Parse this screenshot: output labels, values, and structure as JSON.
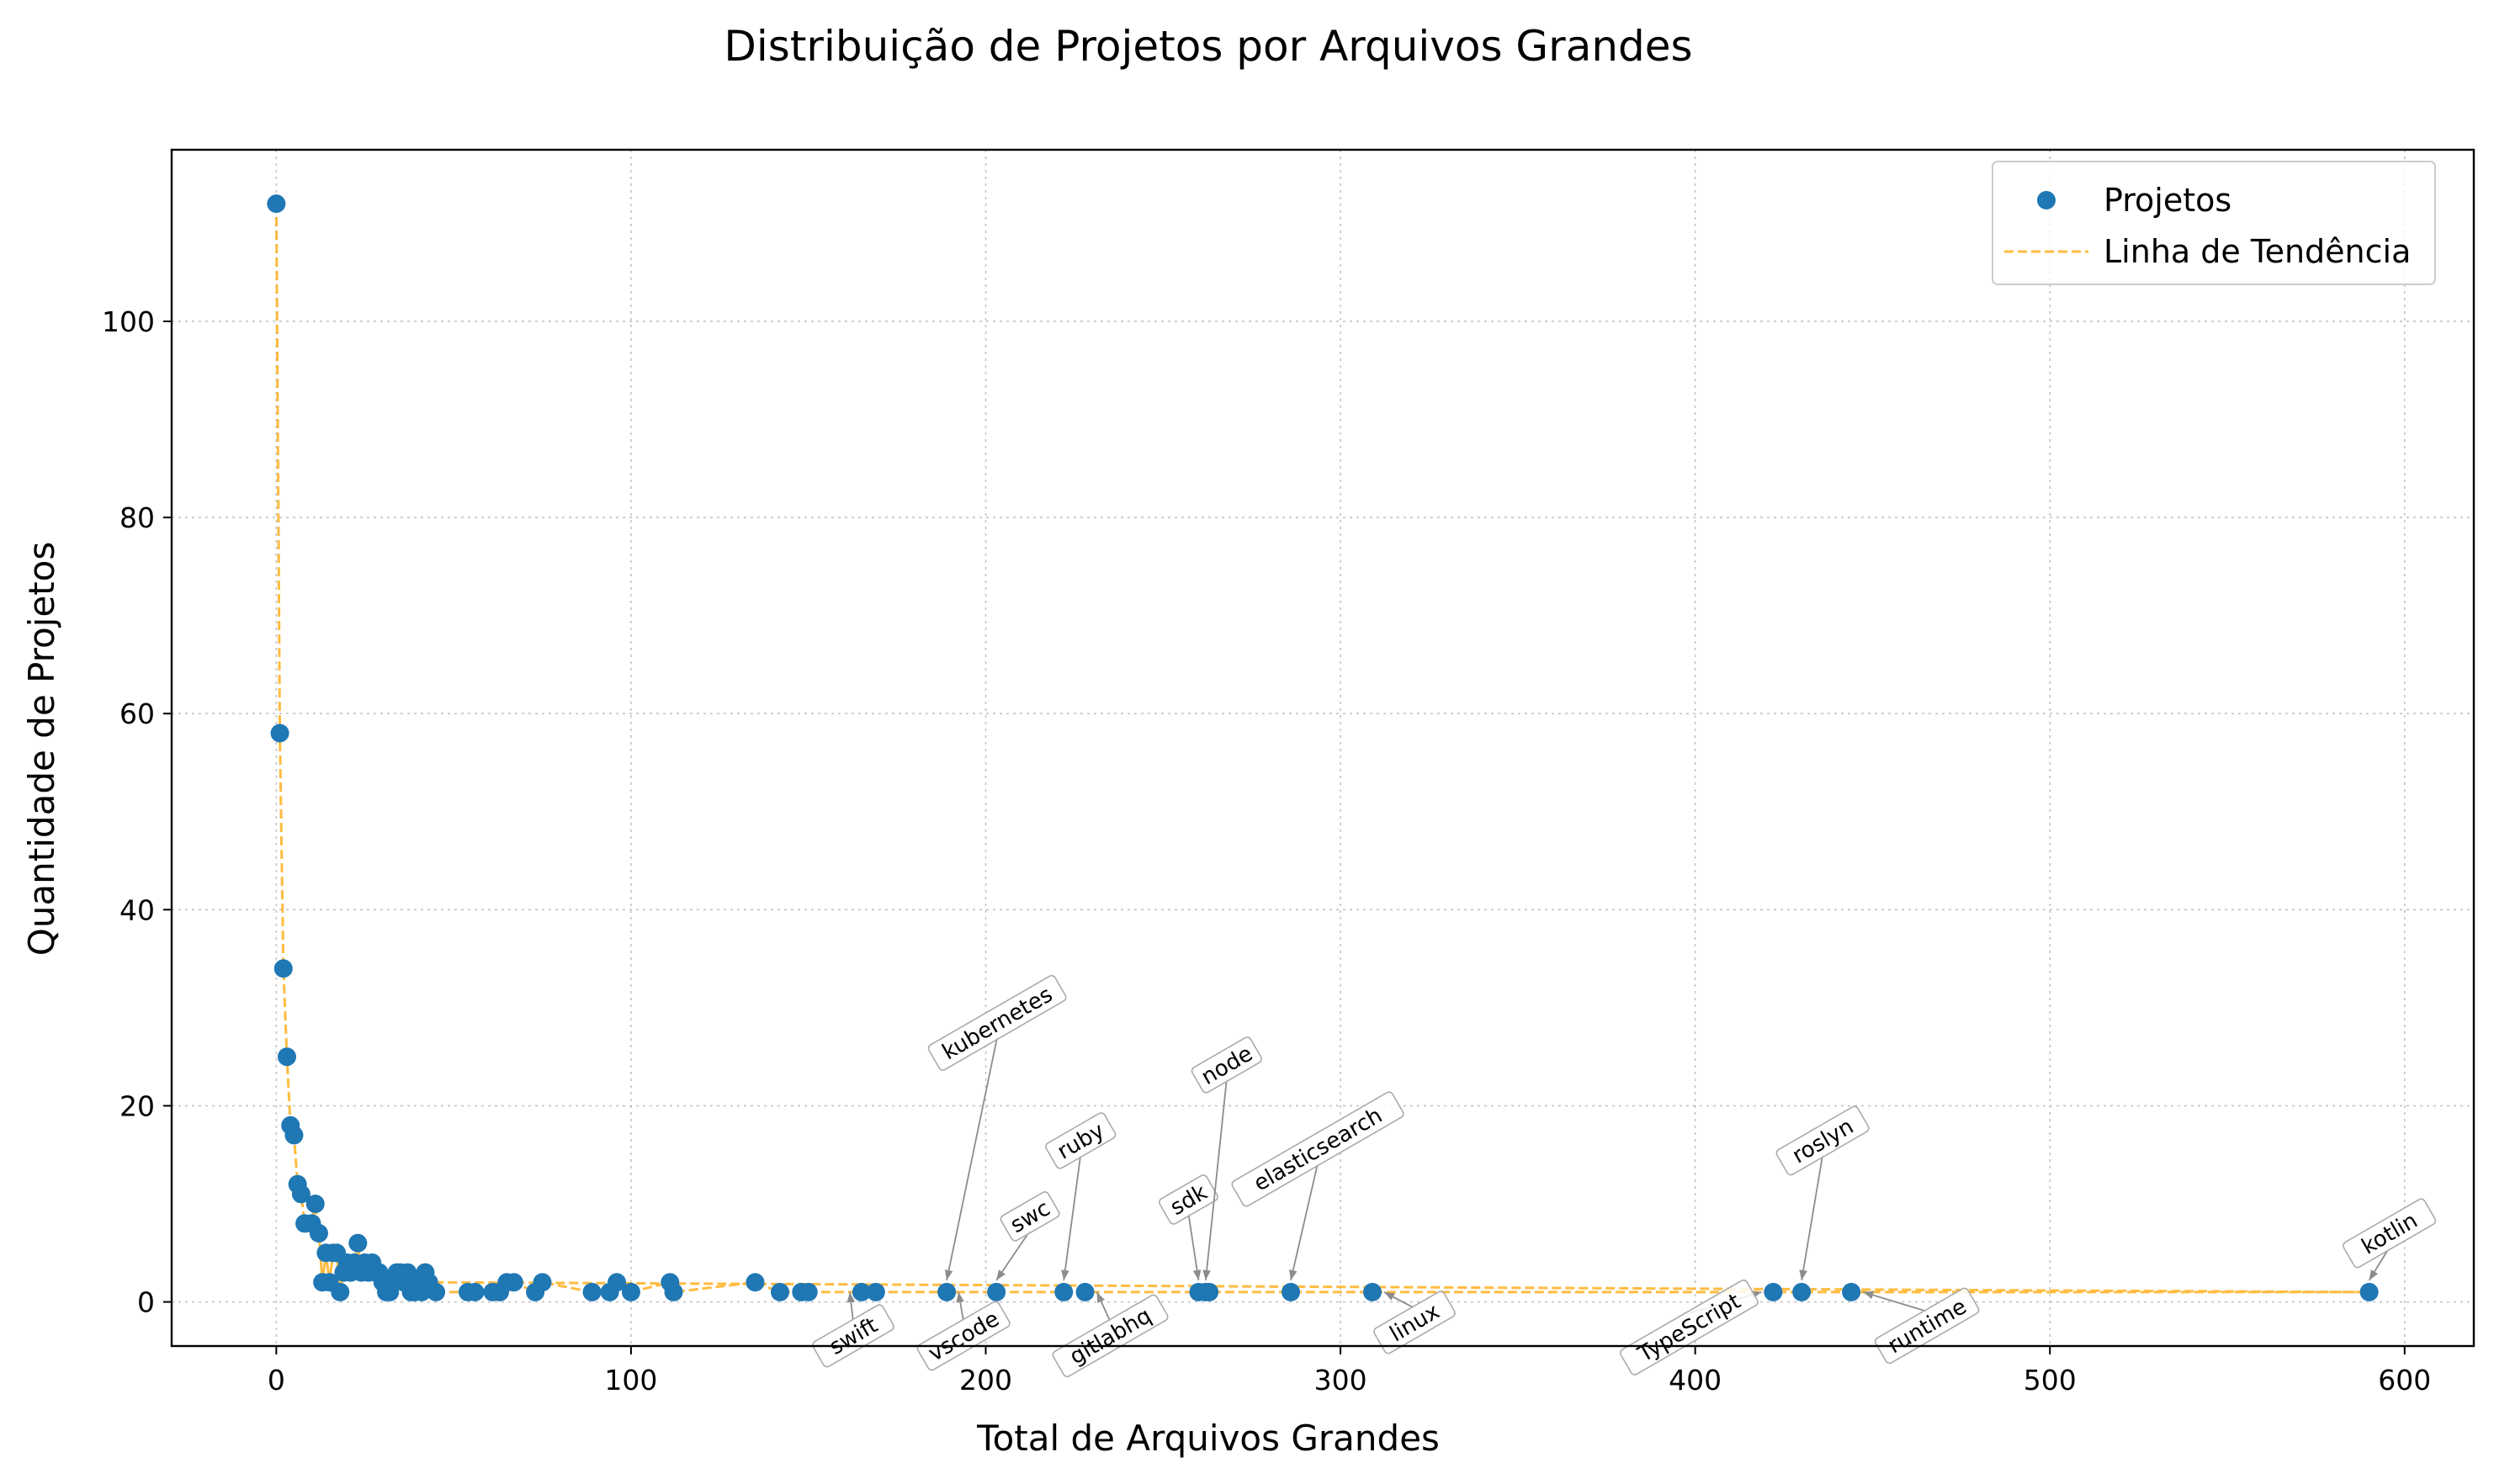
{
  "chart_data": {
    "type": "scatter",
    "title": "Distribuição de Projetos por Arquivos Grandes",
    "xlabel": "Total de Arquivos Grandes",
    "ylabel": "Quantidade de Projetos",
    "xlim": [
      -29.5,
      619.5
    ],
    "ylim": [
      -4.5,
      117.5
    ],
    "xticks": [
      0,
      100,
      200,
      300,
      400,
      500,
      600
    ],
    "yticks": [
      0,
      20,
      40,
      60,
      80,
      100
    ],
    "grid": true,
    "legend_position": "top-right",
    "colors": {
      "points": "#1f77b4",
      "trend": "#ffa500"
    },
    "series": [
      {
        "name": "Projetos",
        "kind": "scatter",
        "points": [
          [
            0,
            112
          ],
          [
            1,
            58
          ],
          [
            2,
            34
          ],
          [
            3,
            25
          ],
          [
            4,
            18
          ],
          [
            5,
            17
          ],
          [
            6,
            12
          ],
          [
            7,
            11
          ],
          [
            8,
            8
          ],
          [
            10,
            8
          ],
          [
            11,
            10
          ],
          [
            12,
            7
          ],
          [
            13,
            2
          ],
          [
            14,
            5
          ],
          [
            15,
            2
          ],
          [
            16,
            5
          ],
          [
            17,
            5
          ],
          [
            18,
            1
          ],
          [
            19,
            3
          ],
          [
            20,
            4
          ],
          [
            21,
            3
          ],
          [
            22,
            4
          ],
          [
            23,
            6
          ],
          [
            24,
            3
          ],
          [
            25,
            4
          ],
          [
            26,
            3
          ],
          [
            27,
            4
          ],
          [
            28,
            3
          ],
          [
            29,
            3
          ],
          [
            30,
            2
          ],
          [
            31,
            1
          ],
          [
            32,
            1
          ],
          [
            33,
            2
          ],
          [
            34,
            3
          ],
          [
            35,
            3
          ],
          [
            36,
            2
          ],
          [
            37,
            3
          ],
          [
            38,
            1
          ],
          [
            39,
            1
          ],
          [
            40,
            2
          ],
          [
            41,
            1
          ],
          [
            42,
            3
          ],
          [
            43,
            2
          ],
          [
            45,
            1
          ],
          [
            54,
            1
          ],
          [
            56,
            1
          ],
          [
            61,
            1
          ],
          [
            63,
            1
          ],
          [
            65,
            2
          ],
          [
            67,
            2
          ],
          [
            73,
            1
          ],
          [
            75,
            2
          ],
          [
            89,
            1
          ],
          [
            94,
            1
          ],
          [
            96,
            2
          ],
          [
            100,
            1
          ],
          [
            111,
            2
          ],
          [
            112,
            1
          ],
          [
            135,
            2
          ],
          [
            142,
            1
          ],
          [
            148,
            1
          ],
          [
            150,
            1
          ],
          [
            165,
            1
          ],
          [
            169,
            1
          ],
          [
            189,
            1
          ],
          [
            203,
            1
          ],
          [
            222,
            1
          ],
          [
            228,
            1
          ],
          [
            260,
            1
          ],
          [
            262,
            1
          ],
          [
            263,
            1
          ],
          [
            286,
            1
          ],
          [
            309,
            1
          ],
          [
            422,
            1
          ],
          [
            430,
            1
          ],
          [
            444,
            1
          ],
          [
            590,
            1
          ]
        ]
      },
      {
        "name": "Linha de Tendência",
        "kind": "line",
        "style": "dashed",
        "order": [
          0,
          1,
          2,
          3,
          4,
          5,
          6,
          7,
          8,
          10,
          11,
          12,
          13,
          14,
          15,
          16,
          17,
          18,
          19,
          20,
          21,
          22,
          23,
          24,
          25,
          26,
          27,
          28,
          29,
          30,
          31,
          32,
          33,
          34,
          35,
          36,
          37,
          38,
          39,
          40,
          41,
          42,
          43,
          45,
          54,
          56,
          61,
          63,
          65,
          67,
          73,
          75,
          89,
          94,
          96,
          100,
          111,
          112,
          135,
          142,
          148,
          150,
          165,
          169,
          189,
          203,
          222,
          228,
          260,
          262,
          263,
          286,
          309,
          422,
          430,
          444,
          590,
          43,
          42,
          41,
          40,
          39,
          38,
          37,
          36,
          35,
          34,
          33,
          32,
          31,
          30,
          29,
          28,
          27,
          26,
          25,
          24,
          23,
          22,
          21,
          20,
          19,
          18,
          17,
          16,
          15,
          14,
          13,
          12
        ]
      }
    ],
    "annotations": [
      {
        "text": "kubernetes",
        "x": 189,
        "y": 1,
        "direction": "up"
      },
      {
        "text": "swc",
        "x": 203,
        "y": 1,
        "direction": "up"
      },
      {
        "text": "ruby",
        "x": 222,
        "y": 1,
        "direction": "up"
      },
      {
        "text": "sdk",
        "x": 260,
        "y": 1,
        "direction": "up"
      },
      {
        "text": "node",
        "x": 262,
        "y": 1,
        "direction": "up"
      },
      {
        "text": "elasticsearch",
        "x": 286,
        "y": 1,
        "direction": "up"
      },
      {
        "text": "roslyn",
        "x": 430,
        "y": 1,
        "direction": "up"
      },
      {
        "text": "kotlin",
        "x": 590,
        "y": 1,
        "direction": "up"
      },
      {
        "text": "swift",
        "x": 165,
        "y": 1,
        "direction": "down"
      },
      {
        "text": "vscode",
        "x": 189,
        "y": 1,
        "direction": "down"
      },
      {
        "text": "gitlabhq",
        "x": 228,
        "y": 1,
        "direction": "down"
      },
      {
        "text": "linux",
        "x": 309,
        "y": 1,
        "direction": "down"
      },
      {
        "text": "TypeScript",
        "x": 422,
        "y": 1,
        "direction": "down"
      },
      {
        "text": "runtime",
        "x": 444,
        "y": 1,
        "direction": "down"
      }
    ]
  }
}
